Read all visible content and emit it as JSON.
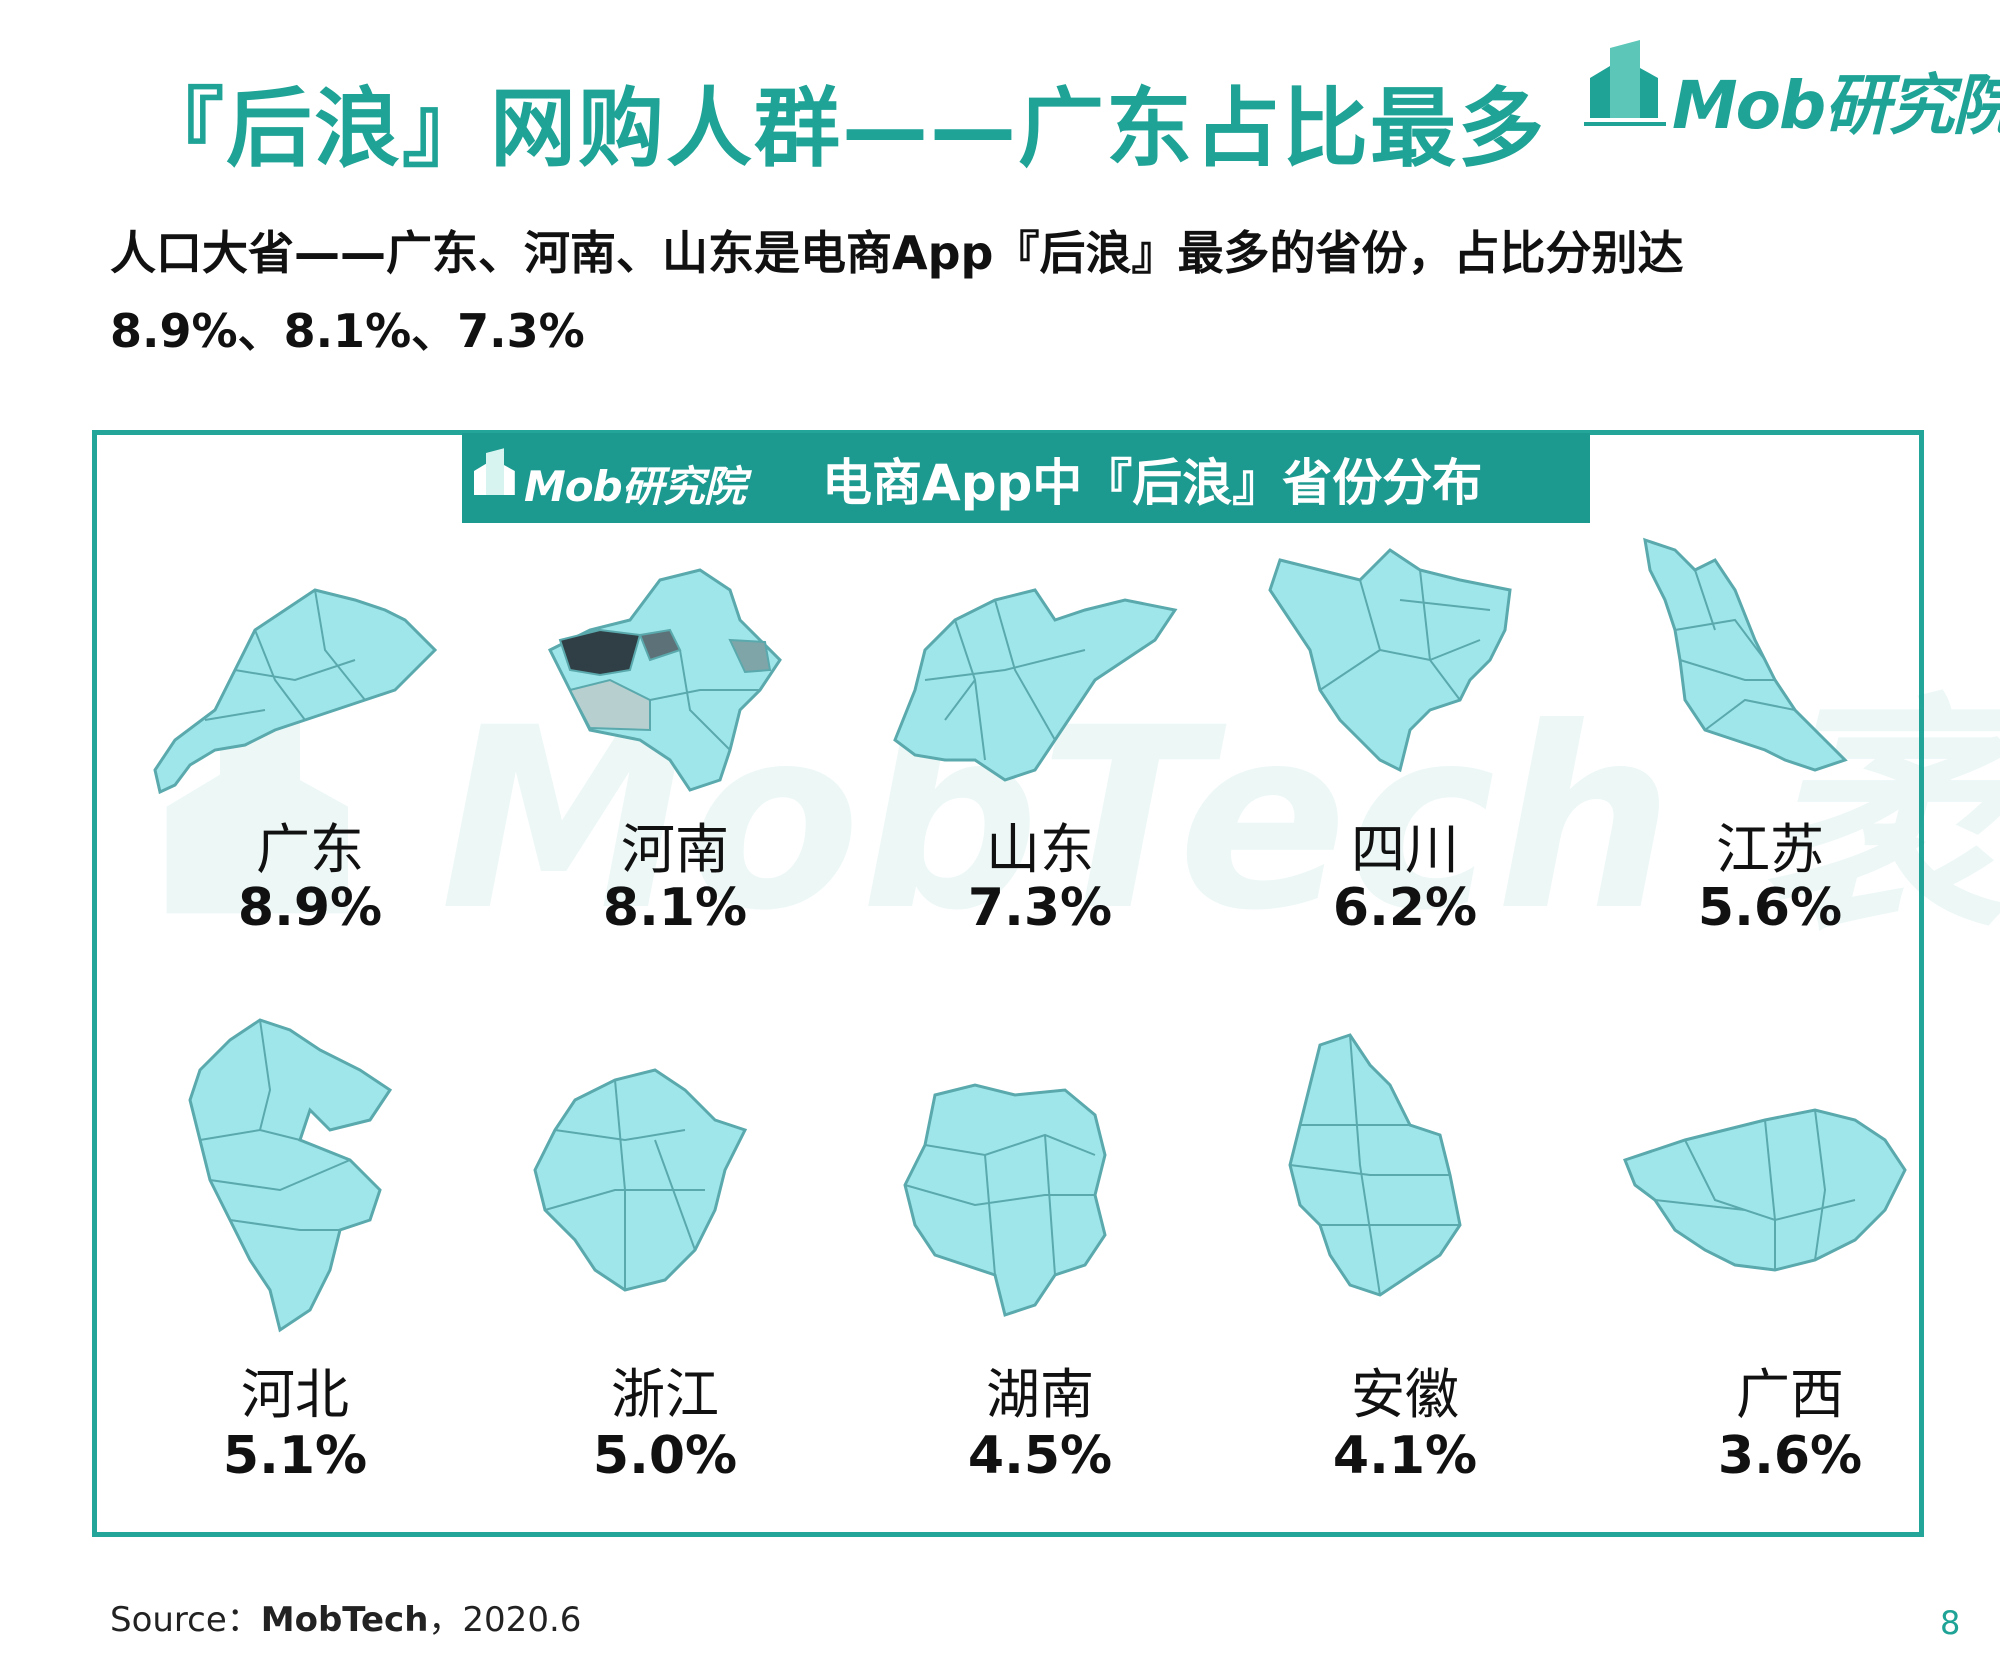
{
  "header": {
    "title": "『后浪』网购人群——广东占比最多",
    "logo_text": "Mob研究院"
  },
  "subtitle": {
    "line1": "人口大省——广东、河南、山东是电商App『后浪』最多的省份，占比分别达",
    "line2": "8.9%、8.1%、7.3%"
  },
  "panel": {
    "logo_text": "Mob研究院",
    "title": "电商App中『后浪』省份分布",
    "watermark": "MobTech 袤博"
  },
  "provinces": [
    {
      "name": "广东",
      "value": "8.9%",
      "map_icon": "guangdong-map-icon"
    },
    {
      "name": "河南",
      "value": "8.1%",
      "map_icon": "henan-map-icon"
    },
    {
      "name": "山东",
      "value": "7.3%",
      "map_icon": "shandong-map-icon"
    },
    {
      "name": "四川",
      "value": "6.2%",
      "map_icon": "sichuan-map-icon"
    },
    {
      "name": "江苏",
      "value": "5.6%",
      "map_icon": "jiangsu-map-icon"
    },
    {
      "name": "河北",
      "value": "5.1%",
      "map_icon": "hebei-map-icon"
    },
    {
      "name": "浙江",
      "value": "5.0%",
      "map_icon": "zhejiang-map-icon"
    },
    {
      "name": "湖南",
      "value": "4.5%",
      "map_icon": "hunan-map-icon"
    },
    {
      "name": "安徽",
      "value": "4.1%",
      "map_icon": "anhui-map-icon"
    },
    {
      "name": "广西",
      "value": "3.6%",
      "map_icon": "guangxi-map-icon"
    }
  ],
  "colors": {
    "accent": "#1ea396",
    "map_fill": "#9fe6ea",
    "map_stroke": "#5aa9ad",
    "header_bg": "#1c9a90"
  },
  "footer": {
    "source_prefix": "Source：",
    "source_name": "MobTech",
    "source_suffix": "，2020.6",
    "page_number": "8"
  }
}
